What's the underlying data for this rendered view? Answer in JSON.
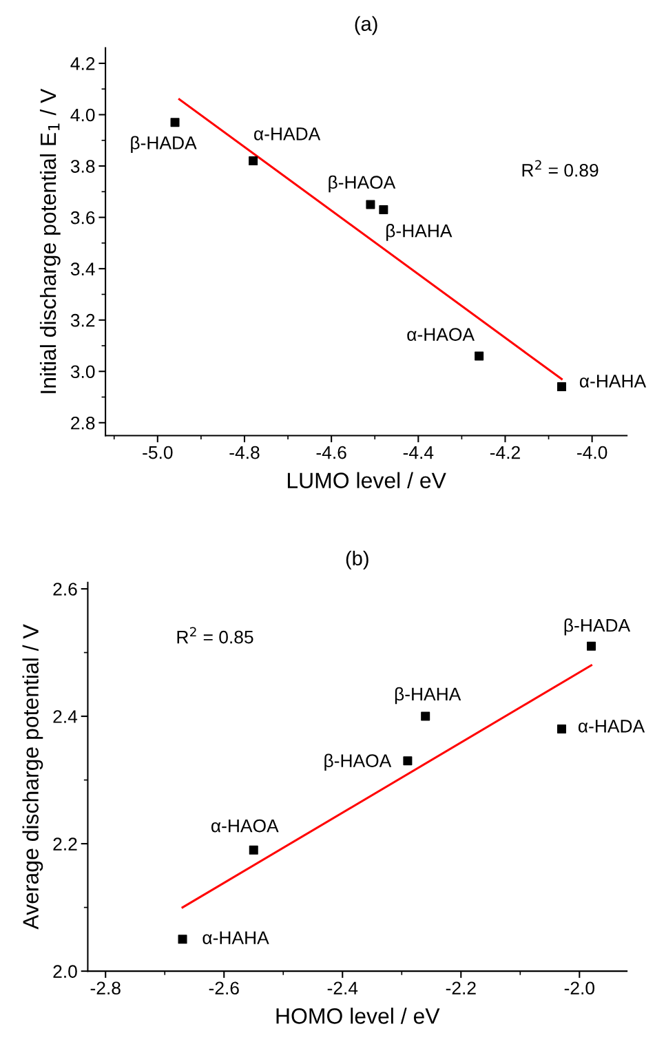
{
  "chart_data": [
    {
      "type": "scatter",
      "title": "(a)",
      "xlabel": "LUMO level / eV",
      "ylabel": "Initial discharge potential E$_{1}$ / V",
      "xlim": [
        -5.12,
        -3.92
      ],
      "ylim": [
        2.75,
        4.26
      ],
      "xticks": [
        {
          "value": -5.0,
          "label": "-5.0"
        },
        -4.8,
        -4.6,
        -4.4,
        -4.2,
        {
          "value": -4.0,
          "label": "-4.0"
        }
      ],
      "yticks": [
        2.8,
        {
          "value": 3.0,
          "label": "3.0"
        },
        3.2,
        3.4,
        3.6,
        3.8,
        {
          "value": 4.0,
          "label": "4.0"
        },
        4.2
      ],
      "grid": false,
      "series": [
        {
          "color": "#000000",
          "marker": "square",
          "x": [
            -4.96,
            -4.78,
            -4.51,
            -4.48,
            -4.26,
            -4.07
          ],
          "values": [
            3.97,
            3.82,
            3.65,
            3.63,
            3.06,
            2.94
          ]
        },
        {
          "type": "line",
          "color": "#ff0000",
          "marker": "none",
          "line_style": "solid",
          "x": [
            -4.95,
            -4.07
          ],
          "values": [
            4.06,
            2.97
          ]
        }
      ],
      "annotations": [
        {
          "text": "β-HADA",
          "x": -4.96,
          "y": 3.97
        },
        {
          "text": "α-HADA",
          "x": -4.78,
          "y": 3.82
        },
        {
          "text": "β-HAOA",
          "x": -4.51,
          "y": 3.65
        },
        {
          "text": "β-HAHA",
          "x": -4.48,
          "y": 3.63
        },
        {
          "text": "α-HAOA",
          "x": -4.26,
          "y": 3.06
        },
        {
          "text": "α-HAHA",
          "x": -4.07,
          "y": 2.94
        },
        "R$^{2}$ = 0.89"
      ]
    },
    {
      "type": "scatter",
      "title": "(b)",
      "xlabel": "HOMO level / eV",
      "ylabel": "Average discharge potential / V",
      "xlim": [
        -2.83,
        -1.92
      ],
      "ylim": [
        2.0,
        2.61
      ],
      "xticks": [
        -2.8,
        -2.6,
        -2.4,
        -2.2,
        {
          "value": -2.0,
          "label": "-2.0"
        }
      ],
      "yticks": [
        {
          "value": 2.0,
          "label": "2.0"
        },
        2.2,
        2.4,
        2.6
      ],
      "grid": false,
      "series": [
        {
          "color": "#000000",
          "marker": "square",
          "x": [
            -1.98,
            -2.03,
            -2.26,
            -2.29,
            -2.55,
            -2.67
          ],
          "values": [
            2.51,
            2.38,
            2.4,
            2.33,
            2.19,
            2.05
          ]
        },
        {
          "type": "line",
          "color": "#ff0000",
          "marker": "none",
          "line_style": "solid",
          "x": [
            -2.67,
            -1.98
          ],
          "values": [
            2.1,
            2.48
          ]
        }
      ],
      "annotations": [
        {
          "text": "β-HADA",
          "x": -1.98,
          "y": 2.51
        },
        {
          "text": "α-HADA",
          "x": -2.03,
          "y": 2.38
        },
        {
          "text": "β-HAHA",
          "x": -2.26,
          "y": 2.4
        },
        {
          "text": "β-HAOA",
          "x": -2.29,
          "y": 2.33
        },
        {
          "text": "α-HAOA",
          "x": -2.55,
          "y": 2.19
        },
        {
          "text": "α-HAHA",
          "x": -2.67,
          "y": 2.05
        },
        "R$^{2}$ = 0.85"
      ]
    }
  ]
}
